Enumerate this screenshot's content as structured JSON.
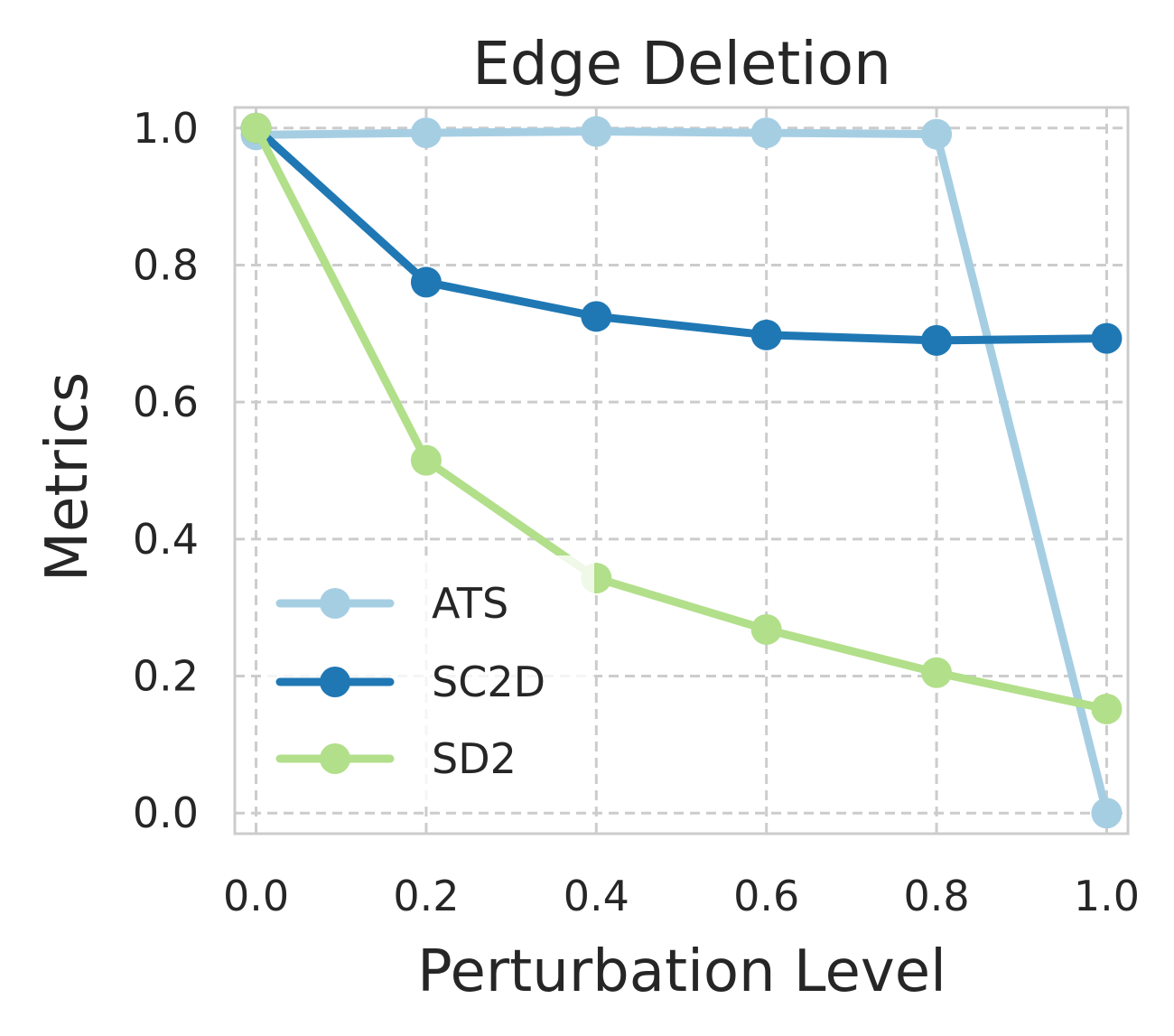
{
  "chart_data": {
    "type": "line",
    "title": "Edge Deletion",
    "xlabel": "Perturbation Level",
    "ylabel": "Metrics",
    "x": [
      0.0,
      0.2,
      0.4,
      0.6,
      0.8,
      1.0
    ],
    "xticks": [
      "0.0",
      "0.2",
      "0.4",
      "0.6",
      "0.8",
      "1.0"
    ],
    "yticks": [
      "0.0",
      "0.2",
      "0.4",
      "0.6",
      "0.8",
      "1.0"
    ],
    "xlim": [
      -0.025,
      1.025
    ],
    "ylim": [
      -0.03,
      1.03
    ],
    "grid": true,
    "legend_position": "lower-left",
    "series": [
      {
        "name": "ATS",
        "color": "#a6cee3",
        "values": [
          0.99,
          0.993,
          0.995,
          0.993,
          0.991,
          0.0
        ]
      },
      {
        "name": "SC2D",
        "color": "#1f78b4",
        "values": [
          1.0,
          0.775,
          0.725,
          0.698,
          0.69,
          0.693
        ]
      },
      {
        "name": "SD2",
        "color": "#b2df8a",
        "values": [
          1.0,
          0.515,
          0.343,
          0.268,
          0.205,
          0.152
        ]
      }
    ]
  }
}
